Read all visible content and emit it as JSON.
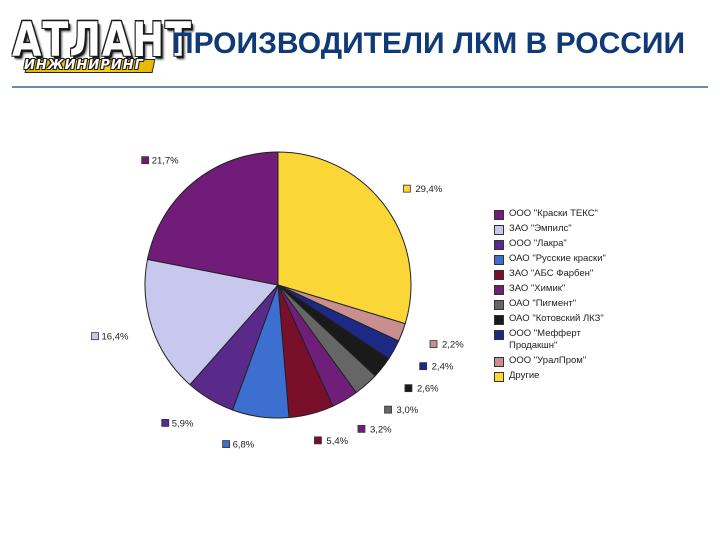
{
  "logo": {
    "main": "АТЛАНТ",
    "sub": "ИНЖИНИРИНГ"
  },
  "page_title": "ПРОИЗВОДИТЕЛИ ЛКМ В РОССИИ",
  "chart_data": {
    "type": "pie",
    "legend_position": "right",
    "slices": [
      {
        "label": "Другие",
        "value": 29.4,
        "display": "29,4%",
        "color": "#fad737"
      },
      {
        "label": "ООО \"УралПром\"",
        "value": 2.2,
        "display": "2,2%",
        "color": "#c98f8f"
      },
      {
        "label": "ООО \"Мефферт Продакшн\"",
        "value": 2.4,
        "display": "2,4%",
        "color": "#1c2a86"
      },
      {
        "label": "ОАО \"Котовский ЛКЗ\"",
        "value": 2.6,
        "display": "2,6%",
        "color": "#1a1a1a"
      },
      {
        "label": "ОАО \"Пигмент\"",
        "value": 3.0,
        "display": "3,0%",
        "color": "#666666"
      },
      {
        "label": "ЗАО \"Химик\"",
        "value": 3.2,
        "display": "3,2%",
        "color": "#6f1f7a"
      },
      {
        "label": "ЗАО \"АБС Фарбен\"",
        "value": 5.4,
        "display": "5,4%",
        "color": "#7a0f2a"
      },
      {
        "label": "ОАО \"Русские краски\"",
        "value": 6.8,
        "display": "6,8%",
        "color": "#3d6fd1"
      },
      {
        "label": "ООО \"Лакра\"",
        "value": 5.9,
        "display": "5,9%",
        "color": "#5a2a8a"
      },
      {
        "label": "ЗАО \"Эмпилс\"",
        "value": 16.4,
        "display": "16,4%",
        "color": "#c8c8ef"
      },
      {
        "label": "ООО \"Краски ТЕКС\"",
        "value": 21.7,
        "display": "21,7%",
        "color": "#701c78"
      }
    ],
    "legend": [
      {
        "label": "ООО \"Краски ТЕКС\"",
        "color": "#701c78"
      },
      {
        "label": "ЗАО \"Эмпилс\"",
        "color": "#c8c8ef"
      },
      {
        "label": "ООО \"Лакра\"",
        "color": "#5a2a8a"
      },
      {
        "label": "ОАО \"Русские краски\"",
        "color": "#3d6fd1"
      },
      {
        "label": "ЗАО \"АБС Фарбен\"",
        "color": "#7a0f2a"
      },
      {
        "label": "ЗАО \"Химик\"",
        "color": "#6f1f7a"
      },
      {
        "label": "ОАО \"Пигмент\"",
        "color": "#666666"
      },
      {
        "label": "ОАО \"Котовский ЛКЗ\"",
        "color": "#1a1a1a"
      },
      {
        "label": "ООО \"Мефферт Продакшн\"",
        "color": "#1c2a86"
      },
      {
        "label": "ООО \"УралПром\"",
        "color": "#c98f8f"
      },
      {
        "label": "Другие",
        "color": "#fad737"
      }
    ]
  }
}
